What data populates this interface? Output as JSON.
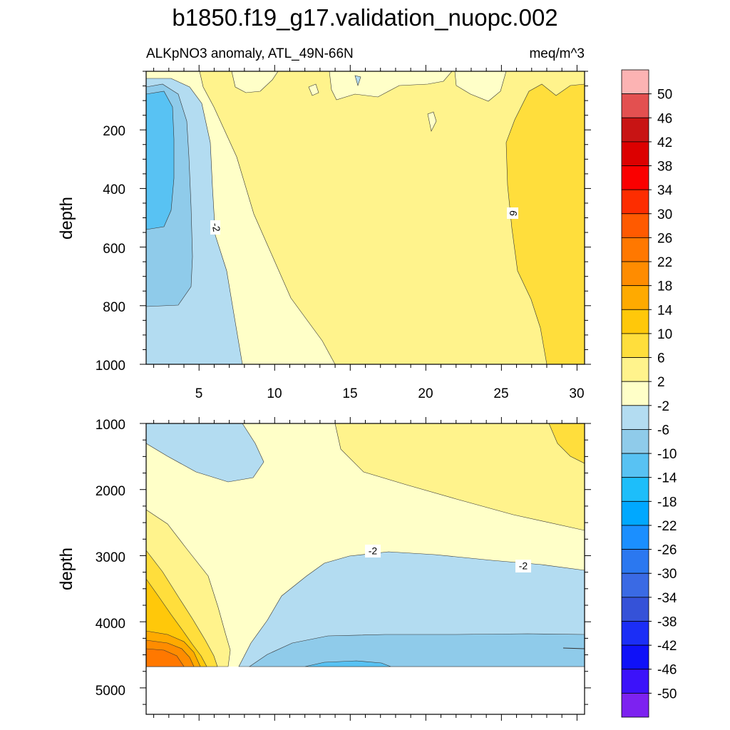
{
  "chart_data": [
    {
      "type": "contour",
      "title": "b1850.f19_g17.validation_nuopc.002",
      "subtitle_left": "ALKpNO3 anomaly, ATL_49N-66N",
      "subtitle_right": "meq/m^3",
      "xlabel": "",
      "ylabel": "depth",
      "x_ticks": [
        "5",
        "10",
        "15",
        "20",
        "25",
        "30"
      ],
      "x_tick_values": [
        5,
        10,
        15,
        20,
        25,
        30
      ],
      "xlim": [
        1.5,
        30.5
      ],
      "y_ticks": [
        "200",
        "400",
        "600",
        "800",
        "1000"
      ],
      "y_tick_values": [
        200,
        400,
        600,
        800,
        1000
      ],
      "ylim": [
        0,
        1000
      ],
      "contour_labels": [
        {
          "text": "-2",
          "x": 6.2,
          "y": 525
        },
        {
          "text": "6",
          "x": 25.8,
          "y": 485
        }
      ]
    },
    {
      "type": "contour",
      "xlabel": "",
      "ylabel": "depth",
      "x_tick_values": [
        5,
        10,
        15,
        20,
        25,
        30
      ],
      "xlim": [
        1.5,
        30.5
      ],
      "y_ticks": [
        "1000",
        "2000",
        "3000",
        "4000",
        "5000"
      ],
      "y_tick_values": [
        1000,
        2000,
        3000,
        4000,
        5000
      ],
      "ylim": [
        1000,
        5400
      ],
      "contour_labels": [
        {
          "text": "-2",
          "x": 16.5,
          "y": 2930
        },
        {
          "text": "-2",
          "x": 26.5,
          "y": 3130
        }
      ]
    }
  ],
  "colorbar": {
    "labels": [
      "50",
      "46",
      "42",
      "38",
      "34",
      "30",
      "26",
      "22",
      "18",
      "14",
      "10",
      "6",
      "2",
      "-2",
      "-6",
      "-10",
      "-14",
      "-18",
      "-22",
      "-26",
      "-30",
      "-34",
      "-38",
      "-42",
      "-46",
      "-50"
    ],
    "colors": [
      "#fcb3b3",
      "#e35050",
      "#c81414",
      "#dc0000",
      "#fa0000",
      "#fd2d00",
      "#ff5a00",
      "#ff7800",
      "#ff8c00",
      "#ffaa00",
      "#ffc80a",
      "#ffde3c",
      "#fff38c",
      "#ffffc8",
      "#b3dcf1",
      "#8fcbea",
      "#58c2f3",
      "#1dbefa",
      "#00a8ff",
      "#1b8fff",
      "#2b78f0",
      "#3a6ae4",
      "#3552d8",
      "#1b2ef6",
      "#0f11f8",
      "#3c12fa",
      "#7d22f0"
    ]
  }
}
